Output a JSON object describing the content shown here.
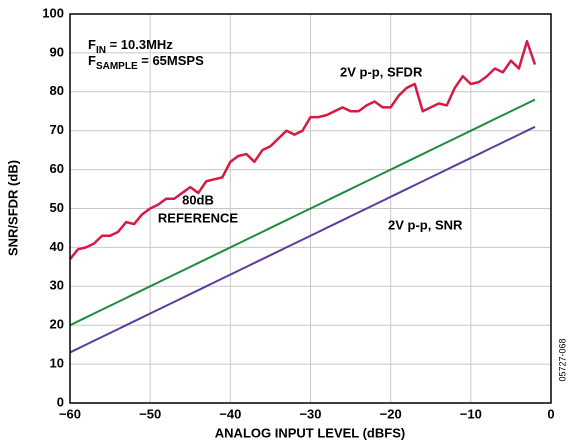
{
  "chart_data": {
    "type": "line",
    "xlabel": "ANALOG INPUT LEVEL (dBFS)",
    "ylabel": "SNR/SFDR (dB)",
    "x": [
      -60,
      -59,
      -58,
      -57,
      -56,
      -55,
      -54,
      -53,
      -52,
      -51,
      -50,
      -49,
      -48,
      -47,
      -46,
      -45,
      -44,
      -43,
      -42,
      -41,
      -40,
      -39,
      -38,
      -37,
      -36,
      -35,
      -34,
      -33,
      -32,
      -31,
      -30,
      -29,
      -28,
      -27,
      -26,
      -25,
      -24,
      -23,
      -22,
      -21,
      -20,
      -19,
      -18,
      -17,
      -16,
      -15,
      -14,
      -13,
      -12,
      -11,
      -10,
      -9,
      -8,
      -7,
      -6,
      -5,
      -4,
      -3,
      -2
    ],
    "series": [
      {
        "name": "2V p-p, SFDR",
        "color": "#d51a45",
        "values": [
          37,
          39.5,
          40,
          41,
          43,
          43,
          44,
          46.5,
          46,
          48.5,
          50,
          51,
          52.5,
          52.5,
          54,
          55.5,
          54,
          57,
          57.5,
          58,
          62,
          63.5,
          64,
          62,
          65,
          66,
          68,
          70,
          69,
          70,
          73.5,
          73.5,
          74,
          75,
          76,
          75,
          75,
          76.5,
          77.5,
          76,
          76,
          79,
          81,
          82,
          75,
          76,
          77,
          76.5,
          81,
          84,
          82,
          82.5,
          84,
          86,
          85,
          88,
          86,
          93,
          87
        ]
      },
      {
        "color": "#1e8c3e",
        "values": [
          20,
          21,
          22,
          23,
          24,
          25,
          26,
          27,
          28,
          29,
          30,
          31,
          32,
          33,
          34,
          35,
          36,
          37,
          38,
          39,
          40,
          41,
          42,
          43,
          44,
          45,
          46,
          47,
          48,
          49,
          50,
          51,
          52,
          53,
          54,
          55,
          56,
          57,
          58,
          59,
          60,
          61,
          62,
          63,
          64,
          65,
          66,
          67,
          68,
          69,
          70,
          71,
          72,
          73,
          74,
          75,
          76,
          77,
          78
        ]
      },
      {
        "name": "2V p-p, SNR",
        "color": "#5c3c9f",
        "values": [
          13,
          14,
          15,
          16,
          17,
          18,
          19,
          20,
          21,
          22,
          23,
          24,
          25,
          26,
          27,
          28,
          29,
          30,
          31,
          32,
          33,
          34,
          35,
          36,
          37,
          38,
          39,
          40,
          41,
          42,
          43,
          44,
          45,
          46,
          47,
          48,
          49,
          50,
          51,
          52,
          53,
          54,
          55,
          56,
          57,
          58,
          59,
          60,
          61,
          62,
          63,
          64,
          65,
          66,
          67,
          68,
          69,
          70,
          71
        ]
      }
    ],
    "annotations": {
      "fin": {
        "symbol": "F",
        "subscript": "IN",
        "text": " = 10.3MHz"
      },
      "fsample": {
        "symbol": "F",
        "subscript": "SAMPLE",
        "text": " = 65MSPS"
      },
      "reference": [
        "80dB",
        "REFERENCE"
      ],
      "figure_id": "05727-068"
    },
    "xlim": [
      -60,
      0
    ],
    "xticks": [
      {
        "value": -60,
        "label": "−60"
      },
      {
        "value": -50,
        "label": "−50"
      },
      {
        "value": -40,
        "label": "−40"
      },
      {
        "value": -30,
        "label": "−30"
      },
      {
        "value": -20,
        "label": "−20"
      },
      {
        "value": -10,
        "label": "−10"
      },
      0
    ],
    "ylim": [
      0,
      100
    ],
    "yticks": [
      0,
      10,
      20,
      30,
      40,
      50,
      60,
      70,
      80,
      90,
      100
    ],
    "grid": true
  }
}
